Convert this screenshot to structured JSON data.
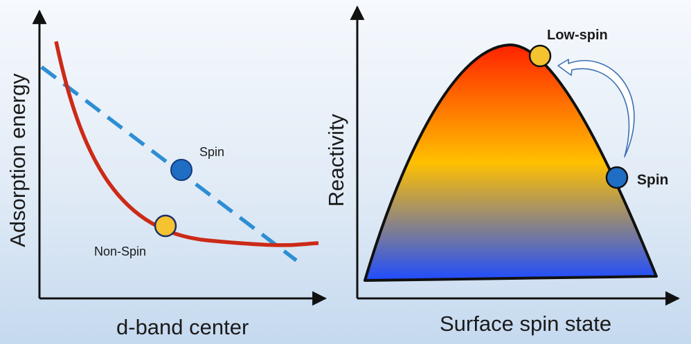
{
  "left_panel": {
    "x_axis_label": "d-band center",
    "y_axis_label": "Adsorption energy",
    "spin_label": "Spin",
    "non_spin_label": "Non-Spin",
    "colors": {
      "curve": "#cc2a17",
      "dashed_line": "#2d8ed4",
      "spin_point": "#1f6ec4",
      "non_spin_point": "#f5c330"
    }
  },
  "right_panel": {
    "x_axis_label": "Surface spin state",
    "y_axis_label": "Reactivity",
    "low_spin_label": "Low-spin",
    "spin_label": "Spin",
    "colors": {
      "gradient_top": "#ff2200",
      "gradient_mid": "#ffc000",
      "gradient_bottom": "#1f4cff",
      "low_spin_point": "#f5c330",
      "spin_point": "#1f6ec4",
      "arrow": "#3c6fb0"
    }
  }
}
